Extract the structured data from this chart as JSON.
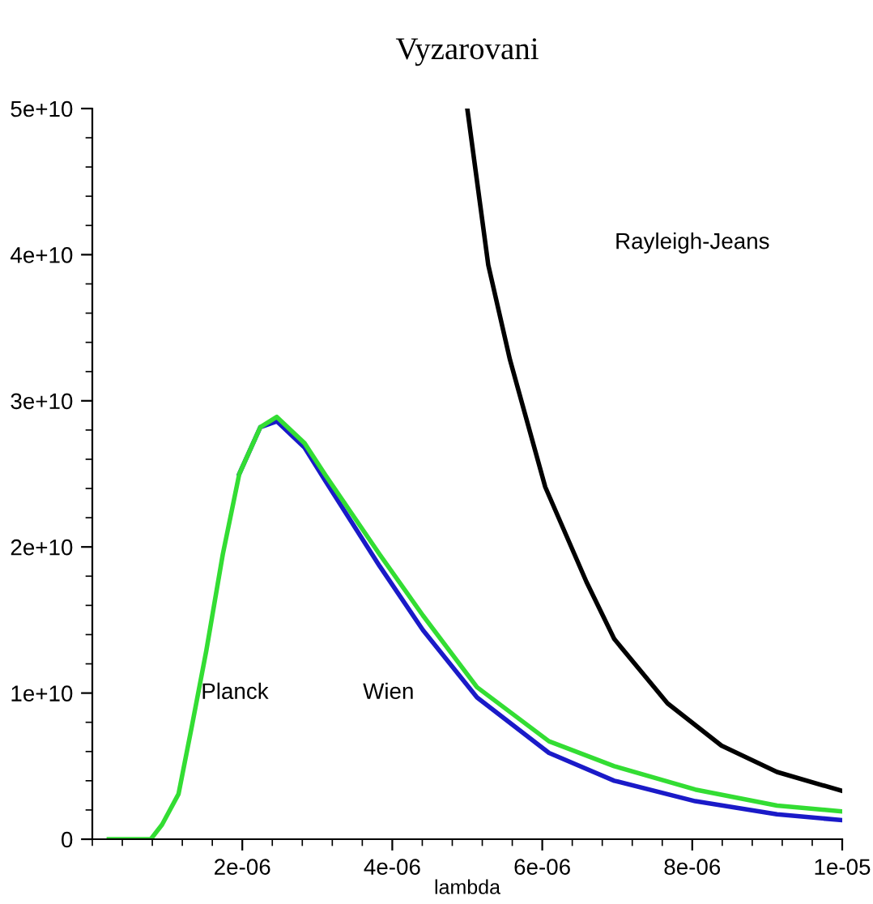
{
  "chart_data": {
    "type": "line",
    "title": "Vyzarovani",
    "xlabel": "lambda",
    "xlim": [
      0,
      1e-05
    ],
    "ylim": [
      0,
      50000000000.0
    ],
    "xticks": [
      {
        "value": 2e-06,
        "label": "2e-06"
      },
      {
        "value": 4e-06,
        "label": "4e-06"
      },
      {
        "value": 6e-06,
        "label": "6e-06"
      },
      {
        "value": 8e-06,
        "label": "8e-06"
      },
      {
        "value": 1e-05,
        "label": "1e-05"
      }
    ],
    "yticks": [
      0,
      {
        "value": 10000000000.0,
        "label": "1e+10"
      },
      {
        "value": 20000000000.0,
        "label": "2e+10"
      },
      {
        "value": 30000000000.0,
        "label": "3e+10"
      },
      {
        "value": 40000000000.0,
        "label": "4e+10"
      },
      {
        "value": 50000000000.0,
        "label": "5e+10"
      }
    ],
    "grid": false,
    "marker": "none",
    "line_style": "solid",
    "series": [
      {
        "color": "#1a1ac8",
        "x": [
          1.96e-06,
          2.24e-06,
          2.46e-06,
          2.83e-06,
          3.11e-06,
          3.83e-06,
          4.41e-06,
          5.13e-06,
          6.09e-06,
          6.96e-06,
          8.04e-06,
          9.13e-06,
          1e-05
        ],
        "values": [
          25000000000.0,
          28200000000.0,
          28600000000.0,
          26800000000.0,
          24500000000.0,
          18700000000.0,
          14300000000.0,
          9700000000.0,
          5900000000.0,
          4000000000.0,
          2600000000.0,
          1700000000.0,
          1300000000.0
        ]
      },
      {
        "color": "#33dd33",
        "x": [
          2.2e-07,
          7.8e-07,
          9.3e-07,
          1.15e-06,
          1.33e-06,
          1.52e-06,
          1.74e-06,
          1.96e-06,
          2.24e-06,
          2.46e-06,
          2.83e-06,
          3.11e-06,
          3.83e-06,
          4.41e-06,
          5.13e-06,
          6.09e-06,
          6.96e-06,
          8.04e-06,
          9.13e-06,
          1e-05
        ],
        "values": [
          0,
          0,
          1000000000.0,
          3100000000.0,
          7800000000.0,
          12900000000.0,
          19500000000.0,
          25000000000.0,
          28200000000.0,
          28900000000.0,
          27100000000.0,
          24900000000.0,
          19500000000.0,
          15300000000.0,
          10400000000.0,
          6700000000.0,
          5000000000.0,
          3400000000.0,
          2300000000.0,
          1900000000.0
        ]
      },
      {
        "color": "#000000",
        "x": [
          5e-06,
          5.28e-06,
          5.57e-06,
          6.04e-06,
          6.59e-06,
          6.96e-06,
          7.67e-06,
          8.39e-06,
          9.13e-06,
          1e-05
        ],
        "values": [
          50000000000.0,
          39300000000.0,
          32800000000.0,
          24100000000.0,
          17600000000.0,
          13700000000.0,
          9300000000.0,
          6400000000.0,
          4600000000.0,
          3300000000.0
        ]
      }
    ],
    "annotations": [
      "Planck",
      "Wien",
      "Rayleigh-Jeans"
    ]
  }
}
